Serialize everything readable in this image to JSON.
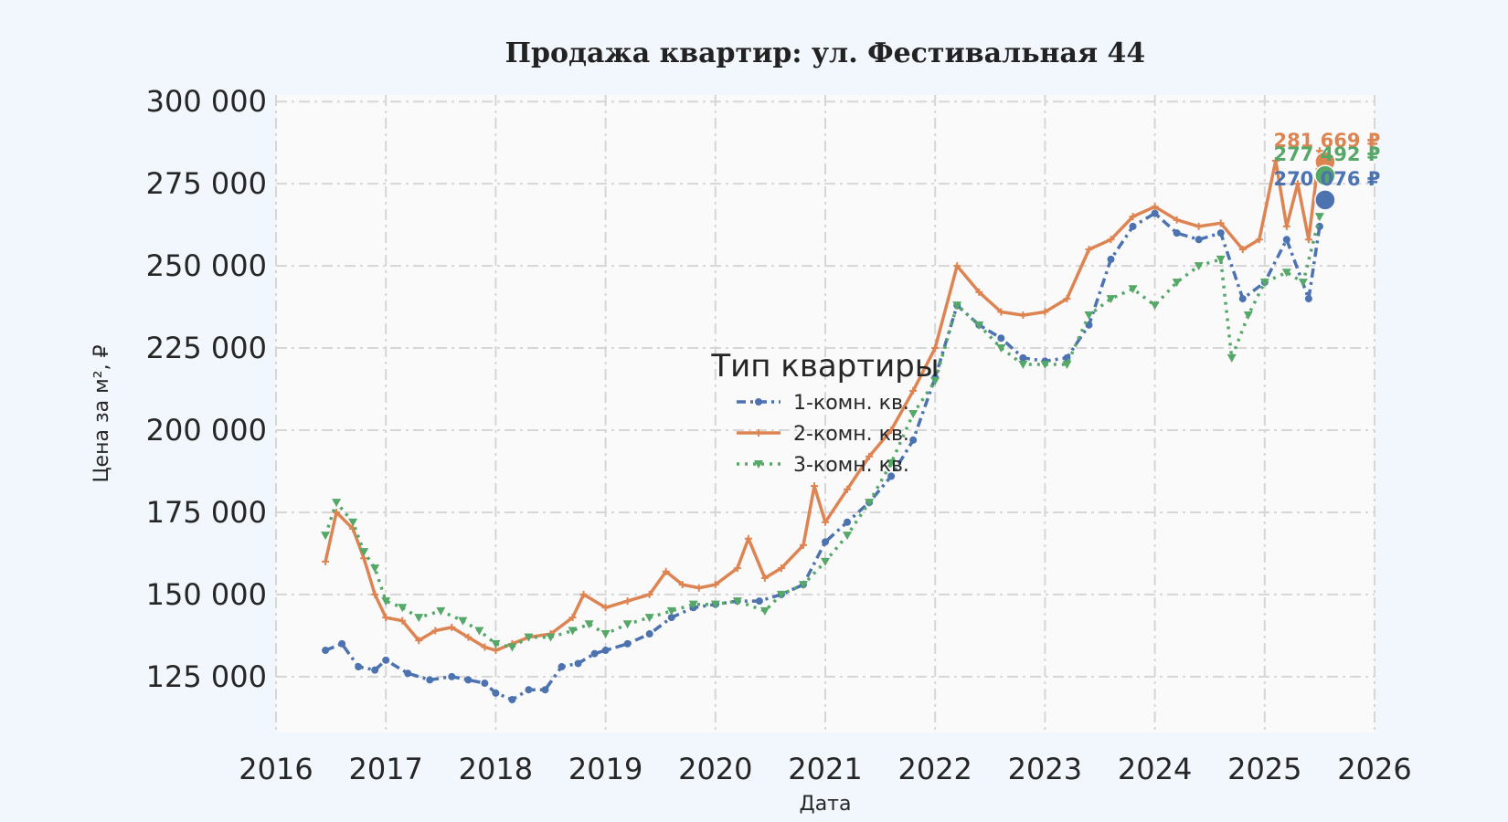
{
  "chart_data": {
    "type": "line",
    "title": "Продажа квартир: ул. Фестивальная 44",
    "xlabel": "Дата",
    "ylabel": "Цена за м², ₽",
    "xlim": [
      2016,
      2026
    ],
    "ylim": [
      108000,
      302000
    ],
    "x_ticks": [
      2016,
      2017,
      2018,
      2019,
      2020,
      2021,
      2022,
      2023,
      2024,
      2025,
      2026
    ],
    "y_ticks": [
      125000,
      150000,
      175000,
      200000,
      225000,
      250000,
      275000,
      300000
    ],
    "y_tick_labels": [
      "125 000",
      "150 000",
      "175 000",
      "200 000",
      "225 000",
      "250 000",
      "275 000",
      "300 000"
    ],
    "grid": true,
    "legend": {
      "title": "Тип квартиры",
      "position": "center"
    },
    "series": [
      {
        "name": "1-комн. кв.",
        "color": "#4c72b0",
        "line_style": "dash-dot",
        "marker": "circle",
        "x": [
          2016.45,
          2016.6,
          2016.75,
          2016.9,
          2017.0,
          2017.2,
          2017.4,
          2017.6,
          2017.75,
          2017.9,
          2018.0,
          2018.15,
          2018.3,
          2018.45,
          2018.6,
          2018.75,
          2018.9,
          2019.0,
          2019.2,
          2019.4,
          2019.6,
          2019.8,
          2020.0,
          2020.2,
          2020.4,
          2020.6,
          2020.8,
          2021.0,
          2021.2,
          2021.4,
          2021.6,
          2021.8,
          2022.0,
          2022.2,
          2022.4,
          2022.6,
          2022.8,
          2023.0,
          2023.2,
          2023.4,
          2023.6,
          2023.8,
          2024.0,
          2024.2,
          2024.4,
          2024.6,
          2024.8,
          2025.0,
          2025.2,
          2025.4,
          2025.5
        ],
        "y": [
          133000,
          135000,
          128000,
          127000,
          130000,
          126000,
          124000,
          125000,
          124000,
          123000,
          120000,
          118000,
          121000,
          121000,
          128000,
          129000,
          132000,
          133000,
          135000,
          138000,
          143000,
          146000,
          147000,
          148000,
          148000,
          150000,
          153000,
          166000,
          172000,
          178000,
          186000,
          197000,
          216000,
          238000,
          232000,
          228000,
          222000,
          221000,
          222000,
          232000,
          252000,
          262000,
          266000,
          260000,
          258000,
          260000,
          240000,
          245000,
          258000,
          240000,
          262000
        ]
      },
      {
        "name": "2-комн. кв.",
        "color": "#dd8452",
        "line_style": "solid",
        "marker": "plus",
        "x": [
          2016.45,
          2016.55,
          2016.7,
          2016.8,
          2016.9,
          2017.0,
          2017.15,
          2017.3,
          2017.45,
          2017.6,
          2017.75,
          2017.9,
          2018.0,
          2018.15,
          2018.3,
          2018.5,
          2018.7,
          2018.8,
          2019.0,
          2019.2,
          2019.4,
          2019.55,
          2019.7,
          2019.85,
          2020.0,
          2020.2,
          2020.3,
          2020.45,
          2020.6,
          2020.8,
          2020.9,
          2021.0,
          2021.2,
          2021.4,
          2021.6,
          2021.8,
          2022.0,
          2022.2,
          2022.4,
          2022.6,
          2022.8,
          2023.0,
          2023.2,
          2023.4,
          2023.6,
          2023.8,
          2024.0,
          2024.2,
          2024.4,
          2024.6,
          2024.8,
          2024.95,
          2025.1,
          2025.2,
          2025.3,
          2025.4,
          2025.5
        ],
        "y": [
          160000,
          175000,
          170000,
          161000,
          150000,
          143000,
          142000,
          136000,
          139000,
          140000,
          137000,
          134000,
          133000,
          135000,
          137000,
          138000,
          143000,
          150000,
          146000,
          148000,
          150000,
          157000,
          153000,
          152000,
          153000,
          158000,
          167000,
          155000,
          158000,
          165000,
          183000,
          172000,
          182000,
          192000,
          200000,
          212000,
          225000,
          250000,
          242000,
          236000,
          235000,
          236000,
          240000,
          255000,
          258000,
          265000,
          268000,
          264000,
          262000,
          263000,
          255000,
          258000,
          282000,
          262000,
          275000,
          258000,
          285000
        ]
      },
      {
        "name": "3-комн. кв.",
        "color": "#55a868",
        "line_style": "dotted",
        "marker": "triangle-down",
        "x": [
          2016.45,
          2016.55,
          2016.7,
          2016.8,
          2016.9,
          2017.0,
          2017.15,
          2017.3,
          2017.5,
          2017.7,
          2017.85,
          2018.0,
          2018.15,
          2018.3,
          2018.5,
          2018.7,
          2018.85,
          2019.0,
          2019.2,
          2019.4,
          2019.6,
          2019.8,
          2020.0,
          2020.2,
          2020.45,
          2020.6,
          2020.8,
          2021.0,
          2021.2,
          2021.4,
          2021.6,
          2021.8,
          2022.0,
          2022.2,
          2022.4,
          2022.6,
          2022.8,
          2023.0,
          2023.2,
          2023.4,
          2023.6,
          2023.8,
          2024.0,
          2024.2,
          2024.4,
          2024.6,
          2024.7,
          2024.85,
          2025.0,
          2025.2,
          2025.35,
          2025.5
        ],
        "y": [
          168000,
          178000,
          172000,
          163000,
          158000,
          148000,
          146000,
          143000,
          145000,
          142000,
          139000,
          135000,
          134000,
          137000,
          137000,
          139000,
          141000,
          138000,
          141000,
          143000,
          145000,
          147000,
          147000,
          148000,
          145000,
          150000,
          153000,
          160000,
          168000,
          178000,
          190000,
          205000,
          215000,
          238000,
          232000,
          225000,
          220000,
          220000,
          220000,
          235000,
          240000,
          243000,
          238000,
          245000,
          250000,
          252000,
          222000,
          235000,
          245000,
          248000,
          245000,
          265000
        ]
      }
    ],
    "end_markers": [
      {
        "series": "2-комн. кв.",
        "x": 2025.55,
        "y": 281669,
        "label": "281 669 ₽",
        "color": "#dd8452"
      },
      {
        "series": "3-комн. кв.",
        "x": 2025.55,
        "y": 277492,
        "label": "277 492 ₽",
        "color": "#55a868"
      },
      {
        "series": "1-комн. кв.",
        "x": 2025.55,
        "y": 270076,
        "label": "270 076 ₽",
        "color": "#4c72b0"
      }
    ]
  }
}
